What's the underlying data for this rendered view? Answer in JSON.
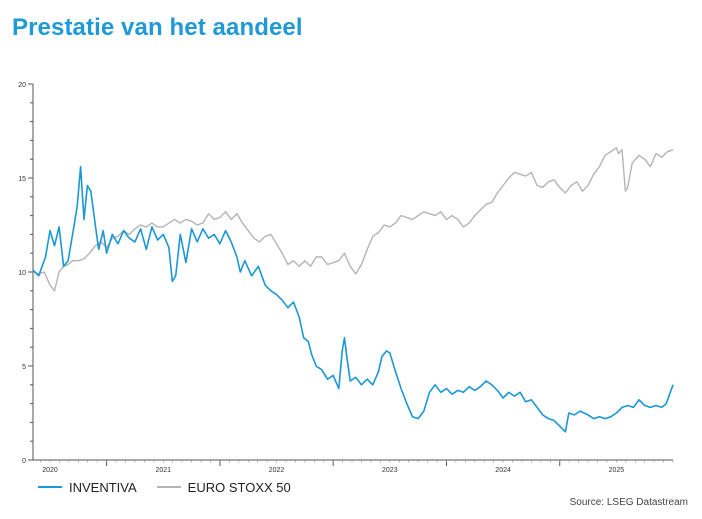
{
  "page": {
    "title": "Prestatie van het aandeel",
    "source": "Source: LSEG Datastream"
  },
  "colors": {
    "title": "#1f9ad6",
    "inventiva": "#1a98d5",
    "eurostoxx": "#b4b4b4"
  },
  "chart_data": {
    "type": "line",
    "title": "",
    "xlabel": "",
    "ylabel": "",
    "ylim": [
      0,
      20
    ],
    "yticks": [
      0,
      5,
      10,
      15,
      20
    ],
    "xlim": [
      2019.85,
      2025.5
    ],
    "xticks": [
      {
        "label": "2020",
        "pos": 2020.0
      },
      {
        "label": "2021",
        "pos": 2021.0
      },
      {
        "label": "2022",
        "pos": 2022.0
      },
      {
        "label": "2023",
        "pos": 2023.0
      },
      {
        "label": "2024",
        "pos": 2024.0
      },
      {
        "label": "2025",
        "pos": 2025.0
      }
    ],
    "grid": false,
    "legend": "bottom",
    "series": [
      {
        "name": "INVENTIVA",
        "color": "#1a98d5",
        "points": [
          [
            2019.85,
            10.1
          ],
          [
            2019.9,
            9.8
          ],
          [
            2019.96,
            10.8
          ],
          [
            2020.0,
            12.2
          ],
          [
            2020.04,
            11.4
          ],
          [
            2020.08,
            12.4
          ],
          [
            2020.12,
            10.3
          ],
          [
            2020.16,
            10.6
          ],
          [
            2020.2,
            12.0
          ],
          [
            2020.24,
            13.5
          ],
          [
            2020.27,
            15.6
          ],
          [
            2020.3,
            12.8
          ],
          [
            2020.33,
            14.6
          ],
          [
            2020.36,
            14.3
          ],
          [
            2020.4,
            12.5
          ],
          [
            2020.43,
            11.2
          ],
          [
            2020.47,
            12.2
          ],
          [
            2020.5,
            11.0
          ],
          [
            2020.55,
            12.0
          ],
          [
            2020.6,
            11.5
          ],
          [
            2020.65,
            12.2
          ],
          [
            2020.7,
            11.8
          ],
          [
            2020.75,
            11.6
          ],
          [
            2020.8,
            12.3
          ],
          [
            2020.85,
            11.2
          ],
          [
            2020.9,
            12.4
          ],
          [
            2020.95,
            11.7
          ],
          [
            2021.0,
            12.0
          ],
          [
            2021.05,
            11.3
          ],
          [
            2021.08,
            9.5
          ],
          [
            2021.11,
            9.8
          ],
          [
            2021.15,
            12.0
          ],
          [
            2021.2,
            10.5
          ],
          [
            2021.25,
            12.3
          ],
          [
            2021.3,
            11.6
          ],
          [
            2021.35,
            12.3
          ],
          [
            2021.4,
            11.8
          ],
          [
            2021.45,
            12.0
          ],
          [
            2021.5,
            11.5
          ],
          [
            2021.55,
            12.2
          ],
          [
            2021.6,
            11.6
          ],
          [
            2021.65,
            10.8
          ],
          [
            2021.68,
            10.0
          ],
          [
            2021.72,
            10.6
          ],
          [
            2021.78,
            9.8
          ],
          [
            2021.84,
            10.3
          ],
          [
            2021.9,
            9.3
          ],
          [
            2021.95,
            9.0
          ],
          [
            2022.0,
            8.8
          ],
          [
            2022.05,
            8.5
          ],
          [
            2022.1,
            8.1
          ],
          [
            2022.15,
            8.4
          ],
          [
            2022.2,
            7.6
          ],
          [
            2022.24,
            6.5
          ],
          [
            2022.28,
            6.3
          ],
          [
            2022.31,
            5.6
          ],
          [
            2022.35,
            5.0
          ],
          [
            2022.4,
            4.8
          ],
          [
            2022.45,
            4.3
          ],
          [
            2022.5,
            4.5
          ],
          [
            2022.55,
            3.8
          ],
          [
            2022.58,
            5.8
          ],
          [
            2022.6,
            6.5
          ],
          [
            2022.62,
            5.5
          ],
          [
            2022.65,
            4.2
          ],
          [
            2022.7,
            4.4
          ],
          [
            2022.75,
            4.0
          ],
          [
            2022.8,
            4.3
          ],
          [
            2022.85,
            4.0
          ],
          [
            2022.9,
            4.7
          ],
          [
            2022.93,
            5.5
          ],
          [
            2022.97,
            5.8
          ],
          [
            2023.0,
            5.7
          ],
          [
            2023.05,
            4.7
          ],
          [
            2023.1,
            3.8
          ],
          [
            2023.15,
            3.0
          ],
          [
            2023.2,
            2.3
          ],
          [
            2023.25,
            2.2
          ],
          [
            2023.3,
            2.6
          ],
          [
            2023.35,
            3.6
          ],
          [
            2023.4,
            4.0
          ],
          [
            2023.45,
            3.6
          ],
          [
            2023.5,
            3.8
          ],
          [
            2023.55,
            3.5
          ],
          [
            2023.6,
            3.7
          ],
          [
            2023.65,
            3.6
          ],
          [
            2023.7,
            3.9
          ],
          [
            2023.75,
            3.7
          ],
          [
            2023.8,
            3.9
          ],
          [
            2023.85,
            4.2
          ],
          [
            2023.9,
            4.0
          ],
          [
            2023.95,
            3.7
          ],
          [
            2024.0,
            3.3
          ],
          [
            2024.05,
            3.6
          ],
          [
            2024.1,
            3.4
          ],
          [
            2024.15,
            3.6
          ],
          [
            2024.2,
            3.1
          ],
          [
            2024.25,
            3.2
          ],
          [
            2024.3,
            2.8
          ],
          [
            2024.35,
            2.4
          ],
          [
            2024.4,
            2.2
          ],
          [
            2024.45,
            2.1
          ],
          [
            2024.5,
            1.8
          ],
          [
            2024.55,
            1.5
          ],
          [
            2024.58,
            2.5
          ],
          [
            2024.63,
            2.4
          ],
          [
            2024.68,
            2.6
          ],
          [
            2024.75,
            2.4
          ],
          [
            2024.8,
            2.2
          ],
          [
            2024.85,
            2.3
          ],
          [
            2024.9,
            2.2
          ],
          [
            2024.95,
            2.3
          ],
          [
            2025.0,
            2.5
          ],
          [
            2025.05,
            2.8
          ],
          [
            2025.1,
            2.9
          ],
          [
            2025.15,
            2.8
          ],
          [
            2025.2,
            3.2
          ],
          [
            2025.25,
            2.9
          ],
          [
            2025.3,
            2.8
          ],
          [
            2025.35,
            2.9
          ],
          [
            2025.4,
            2.8
          ],
          [
            2025.44,
            3.0
          ],
          [
            2025.47,
            3.5
          ],
          [
            2025.5,
            4.0
          ]
        ]
      },
      {
        "name": "EURO STOXX 50",
        "color": "#b4b4b4",
        "points": [
          [
            2019.85,
            10.0
          ],
          [
            2019.9,
            9.9
          ],
          [
            2019.95,
            10.0
          ],
          [
            2020.0,
            9.3
          ],
          [
            2020.04,
            9.0
          ],
          [
            2020.08,
            10.0
          ],
          [
            2020.12,
            10.3
          ],
          [
            2020.16,
            10.4
          ],
          [
            2020.2,
            10.6
          ],
          [
            2020.25,
            10.6
          ],
          [
            2020.3,
            10.7
          ],
          [
            2020.35,
            11.0
          ],
          [
            2020.4,
            11.4
          ],
          [
            2020.45,
            11.6
          ],
          [
            2020.5,
            11.3
          ],
          [
            2020.55,
            11.8
          ],
          [
            2020.6,
            11.9
          ],
          [
            2020.65,
            12.2
          ],
          [
            2020.7,
            12.0
          ],
          [
            2020.75,
            12.3
          ],
          [
            2020.8,
            12.5
          ],
          [
            2020.85,
            12.4
          ],
          [
            2020.9,
            12.6
          ],
          [
            2020.95,
            12.4
          ],
          [
            2021.0,
            12.4
          ],
          [
            2021.05,
            12.6
          ],
          [
            2021.1,
            12.8
          ],
          [
            2021.15,
            12.6
          ],
          [
            2021.2,
            12.8
          ],
          [
            2021.25,
            12.7
          ],
          [
            2021.3,
            12.5
          ],
          [
            2021.35,
            12.6
          ],
          [
            2021.4,
            13.1
          ],
          [
            2021.45,
            12.8
          ],
          [
            2021.5,
            12.9
          ],
          [
            2021.55,
            13.2
          ],
          [
            2021.6,
            12.8
          ],
          [
            2021.65,
            13.1
          ],
          [
            2021.7,
            12.6
          ],
          [
            2021.75,
            12.2
          ],
          [
            2021.8,
            11.8
          ],
          [
            2021.85,
            11.6
          ],
          [
            2021.9,
            11.9
          ],
          [
            2021.95,
            12.0
          ],
          [
            2022.0,
            11.5
          ],
          [
            2022.05,
            11.0
          ],
          [
            2022.1,
            10.4
          ],
          [
            2022.15,
            10.6
          ],
          [
            2022.2,
            10.3
          ],
          [
            2022.25,
            10.6
          ],
          [
            2022.3,
            10.3
          ],
          [
            2022.35,
            10.8
          ],
          [
            2022.4,
            10.8
          ],
          [
            2022.45,
            10.4
          ],
          [
            2022.5,
            10.5
          ],
          [
            2022.55,
            10.6
          ],
          [
            2022.6,
            11.0
          ],
          [
            2022.65,
            10.3
          ],
          [
            2022.7,
            9.9
          ],
          [
            2022.75,
            10.4
          ],
          [
            2022.8,
            11.2
          ],
          [
            2022.85,
            11.9
          ],
          [
            2022.9,
            12.1
          ],
          [
            2022.95,
            12.5
          ],
          [
            2023.0,
            12.4
          ],
          [
            2023.05,
            12.6
          ],
          [
            2023.1,
            13.0
          ],
          [
            2023.15,
            12.9
          ],
          [
            2023.2,
            12.8
          ],
          [
            2023.25,
            13.0
          ],
          [
            2023.3,
            13.2
          ],
          [
            2023.35,
            13.1
          ],
          [
            2023.4,
            13.0
          ],
          [
            2023.45,
            13.2
          ],
          [
            2023.5,
            12.8
          ],
          [
            2023.55,
            13.0
          ],
          [
            2023.6,
            12.8
          ],
          [
            2023.65,
            12.4
          ],
          [
            2023.7,
            12.6
          ],
          [
            2023.75,
            13.0
          ],
          [
            2023.8,
            13.3
          ],
          [
            2023.85,
            13.6
          ],
          [
            2023.9,
            13.7
          ],
          [
            2023.95,
            14.2
          ],
          [
            2024.0,
            14.6
          ],
          [
            2024.05,
            15.0
          ],
          [
            2024.1,
            15.3
          ],
          [
            2024.15,
            15.2
          ],
          [
            2024.2,
            15.1
          ],
          [
            2024.25,
            15.3
          ],
          [
            2024.3,
            14.6
          ],
          [
            2024.35,
            14.5
          ],
          [
            2024.4,
            14.8
          ],
          [
            2024.45,
            14.9
          ],
          [
            2024.5,
            14.5
          ],
          [
            2024.55,
            14.2
          ],
          [
            2024.6,
            14.6
          ],
          [
            2024.65,
            14.8
          ],
          [
            2024.7,
            14.3
          ],
          [
            2024.75,
            14.6
          ],
          [
            2024.8,
            15.2
          ],
          [
            2024.85,
            15.6
          ],
          [
            2024.9,
            16.2
          ],
          [
            2024.95,
            16.4
          ],
          [
            2025.0,
            16.6
          ],
          [
            2025.02,
            16.3
          ],
          [
            2025.05,
            16.5
          ],
          [
            2025.08,
            14.3
          ],
          [
            2025.1,
            14.5
          ],
          [
            2025.14,
            15.8
          ],
          [
            2025.2,
            16.2
          ],
          [
            2025.25,
            16.0
          ],
          [
            2025.3,
            15.6
          ],
          [
            2025.35,
            16.3
          ],
          [
            2025.4,
            16.1
          ],
          [
            2025.45,
            16.4
          ],
          [
            2025.5,
            16.5
          ]
        ]
      }
    ]
  }
}
